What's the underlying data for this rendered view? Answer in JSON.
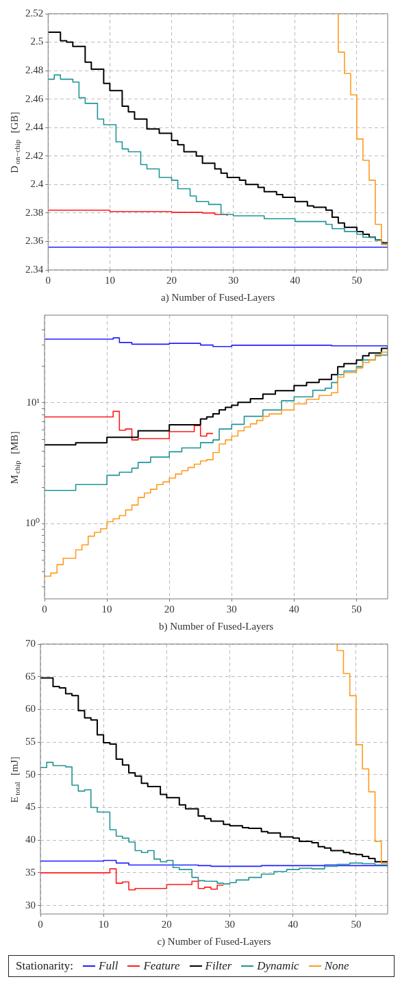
{
  "chart_data": [
    {
      "type": "step",
      "xlabel": "a) Number of Fused-Layers",
      "ylabel": "D$_{on−chip}$  [GB]",
      "xlim": [
        0,
        55
      ],
      "xticks": [
        0,
        10,
        20,
        30,
        40,
        50
      ],
      "ylim": [
        2.34,
        2.52
      ],
      "yticks": [
        2.34,
        2.36,
        2.38,
        2.4,
        2.42,
        2.44,
        2.46,
        2.48,
        2.5,
        2.52
      ],
      "grid": true,
      "series": [
        {
          "color": "#1f1fff",
          "x": [
            0,
            55
          ],
          "values": [
            2.356,
            2.356
          ]
        },
        {
          "color": "#ff1a1a",
          "x": [
            0,
            10,
            20,
            25,
            27,
            29
          ],
          "values": [
            2.382,
            2.381,
            2.3805,
            2.38,
            2.379,
            2.378
          ]
        },
        {
          "color": "#000000",
          "x": [
            0,
            2,
            3,
            4,
            6,
            7,
            9,
            10,
            12,
            13,
            14,
            16,
            18,
            20,
            21,
            22,
            24,
            25,
            27,
            28,
            29,
            31,
            32,
            34,
            35,
            37,
            38,
            40,
            42,
            43,
            45,
            46,
            47,
            48,
            50,
            51,
            52,
            53,
            54,
            55
          ],
          "values": [
            2.507,
            2.501,
            2.5,
            2.497,
            2.486,
            2.481,
            2.471,
            2.466,
            2.455,
            2.451,
            2.446,
            2.439,
            2.436,
            2.431,
            2.428,
            2.423,
            2.42,
            2.415,
            2.411,
            2.408,
            2.405,
            2.403,
            2.4,
            2.398,
            2.395,
            2.393,
            2.391,
            2.388,
            2.385,
            2.384,
            2.382,
            2.377,
            2.373,
            2.37,
            2.367,
            2.365,
            2.363,
            2.361,
            2.359,
            2.359
          ]
        },
        {
          "color": "#1f9595",
          "x": [
            0,
            1,
            2,
            4,
            5,
            6,
            8,
            9,
            11,
            12,
            13,
            15,
            16,
            18,
            20,
            21,
            23,
            24,
            26,
            28,
            30,
            35,
            40,
            45,
            46,
            48,
            50,
            51,
            53,
            54,
            55
          ],
          "values": [
            2.474,
            2.477,
            2.474,
            2.472,
            2.461,
            2.457,
            2.446,
            2.442,
            2.43,
            2.425,
            2.423,
            2.414,
            2.411,
            2.405,
            2.403,
            2.397,
            2.392,
            2.388,
            2.386,
            2.379,
            2.378,
            2.376,
            2.374,
            2.372,
            2.369,
            2.367,
            2.365,
            2.363,
            2.361,
            2.358,
            2.358
          ]
        },
        {
          "color": "#ff9a1f",
          "x": [
            47,
            47,
            48,
            49,
            50,
            51,
            52,
            53,
            54,
            55
          ],
          "values": [
            2.52,
            2.493,
            2.478,
            2.463,
            2.432,
            2.417,
            2.403,
            2.372,
            2.358,
            2.358
          ]
        }
      ]
    },
    {
      "type": "step",
      "xlabel": "b) Number of Fused-Layers",
      "ylabel": "M$_{chip}$  [MB]",
      "xlim": [
        0,
        55
      ],
      "xticks": [
        0,
        10,
        20,
        30,
        40,
        50
      ],
      "ylim": [
        0.24,
        53
      ],
      "log": true,
      "yticks": [
        {
          "value": 0.3,
          "label": null
        },
        {
          "value": 0.4,
          "label": null
        },
        {
          "value": 0.5,
          "label": null
        },
        {
          "value": 0.6,
          "label": null
        },
        {
          "value": 0.7,
          "label": null
        },
        {
          "value": 0.8,
          "label": null
        },
        {
          "value": 0.9,
          "label": null
        },
        {
          "value": 1,
          "label": "10⁰"
        },
        {
          "value": 2,
          "label": null
        },
        {
          "value": 3,
          "label": null
        },
        {
          "value": 4,
          "label": null
        },
        {
          "value": 5,
          "label": null
        },
        {
          "value": 6,
          "label": null
        },
        {
          "value": 7,
          "label": null
        },
        {
          "value": 8,
          "label": null
        },
        {
          "value": 9,
          "label": null
        },
        {
          "value": 10,
          "label": "10¹"
        },
        {
          "value": 20,
          "label": null
        },
        {
          "value": 30,
          "label": null
        },
        {
          "value": 40,
          "label": null
        }
      ],
      "grid": true,
      "series": [
        {
          "color": "#1f1fff",
          "x": [
            0,
            11,
            12,
            14,
            20,
            25,
            27,
            30,
            45,
            46,
            55
          ],
          "values": [
            33.6,
            34.4,
            31.5,
            30.5,
            31,
            30,
            29.2,
            29.9,
            29.9,
            29.6,
            29.3
          ]
        },
        {
          "color": "#ff1a1a",
          "x": [
            0,
            11,
            12,
            13,
            14,
            15,
            20,
            24,
            25,
            26,
            27
          ],
          "values": [
            7.64,
            8.5,
            5.93,
            6.08,
            4.93,
            5.05,
            5.78,
            6.48,
            5.31,
            5.58,
            5.58
          ]
        },
        {
          "color": "#000000",
          "x": [
            0,
            5,
            10,
            15,
            20,
            25,
            26,
            27,
            28,
            29,
            30,
            31,
            33,
            35,
            37,
            40,
            42,
            44,
            46,
            47,
            48,
            50,
            51,
            52,
            54,
            55
          ],
          "values": [
            4.5,
            4.68,
            5.18,
            5.87,
            6.58,
            7.36,
            7.65,
            8.1,
            8.73,
            9.17,
            9.55,
            10.1,
            10.8,
            11.8,
            12.6,
            13.9,
            14.7,
            15.6,
            17.1,
            19.9,
            21.1,
            22.6,
            24.5,
            25.8,
            28.2,
            29.3
          ]
        },
        {
          "color": "#1f9595",
          "x": [
            0,
            5,
            10,
            12,
            14,
            15,
            17,
            20,
            22,
            25,
            27,
            28,
            30,
            32,
            35,
            38,
            40,
            43,
            45,
            46,
            47,
            48,
            50,
            51,
            53,
            55
          ],
          "values": [
            1.89,
            2.11,
            2.52,
            2.67,
            2.88,
            3.22,
            3.56,
            3.94,
            4.24,
            4.68,
            4.93,
            6.08,
            6.64,
            7.73,
            8.73,
            10.4,
            11.2,
            12.7,
            13.2,
            14.7,
            17.1,
            18.3,
            19.9,
            22.6,
            24.8,
            27.5
          ]
        },
        {
          "color": "#ff9a1f",
          "x": [
            0,
            1,
            2,
            3,
            5,
            6,
            7,
            8,
            9,
            10,
            11,
            12,
            13,
            14,
            15,
            16,
            17,
            18,
            19,
            20,
            21,
            22,
            23,
            24,
            25,
            26,
            27,
            28,
            29,
            30,
            31,
            32,
            33,
            34,
            35,
            36,
            38,
            40,
            42,
            44,
            46,
            47,
            48,
            50,
            51,
            52,
            53,
            54,
            55
          ],
          "values": [
            0.369,
            0.392,
            0.46,
            0.52,
            0.61,
            0.67,
            0.79,
            0.85,
            0.91,
            1.04,
            1.1,
            1.17,
            1.3,
            1.43,
            1.65,
            1.8,
            1.93,
            2.11,
            2.22,
            2.39,
            2.58,
            2.75,
            2.92,
            3.11,
            3.31,
            3.39,
            3.88,
            4.57,
            4.93,
            5.31,
            5.87,
            6.31,
            6.7,
            7.15,
            7.73,
            8.1,
            8.73,
            9.8,
            10.7,
            11.5,
            12.1,
            16.3,
            17.8,
            19.4,
            21.5,
            22.6,
            24.3,
            26.2,
            27.2
          ]
        }
      ]
    },
    {
      "type": "step",
      "xlabel": "c) Number of Fused-Layers",
      "ylabel": "E$_{total}$  [mJ]",
      "xlim": [
        0,
        55
      ],
      "xticks": [
        0,
        10,
        20,
        30,
        40,
        50
      ],
      "ylim": [
        28.7,
        70
      ],
      "yticks": [
        30,
        35,
        40,
        45,
        50,
        55,
        60,
        65,
        70
      ],
      "grid": true,
      "legend": "bottom",
      "legend_title": "Stationarity:",
      "series": [
        {
          "name": "Full",
          "color": "#1f1fff",
          "x": [
            0,
            10,
            12,
            14,
            25,
            27,
            35,
            45,
            47,
            55
          ],
          "values": [
            36.8,
            36.9,
            36.5,
            36.2,
            36.1,
            36.0,
            36.1,
            36.2,
            36.1,
            35.9
          ]
        },
        {
          "name": "Feature",
          "color": "#ff1a1a",
          "x": [
            0,
            11,
            12,
            13,
            14,
            15,
            20,
            24,
            25,
            26,
            27,
            28,
            29
          ],
          "values": [
            35.0,
            35.6,
            33.4,
            33.6,
            32.4,
            32.6,
            33.2,
            33.7,
            32.6,
            32.8,
            32.5,
            33.1,
            33.1
          ]
        },
        {
          "name": "Filter",
          "color": "#000000",
          "x": [
            0,
            2,
            3,
            4,
            5,
            6,
            7,
            8,
            9,
            10,
            11,
            12,
            13,
            14,
            15,
            16,
            17,
            19,
            20,
            22,
            23,
            25,
            26,
            27,
            29,
            30,
            32,
            33,
            35,
            36,
            38,
            40,
            41,
            43,
            44,
            45,
            46,
            48,
            49,
            50,
            51,
            52,
            53,
            55
          ],
          "values": [
            64.8,
            63.5,
            63.3,
            62.4,
            62.1,
            59.8,
            58.7,
            58.4,
            56.1,
            54.9,
            54.7,
            52.4,
            51.5,
            50.3,
            49.8,
            48.7,
            48.2,
            47.0,
            46.5,
            45.4,
            44.8,
            43.7,
            43.3,
            42.9,
            42.4,
            42.2,
            41.9,
            41.8,
            41.3,
            41.1,
            40.5,
            40.3,
            39.8,
            39.6,
            39.0,
            38.8,
            38.4,
            38.1,
            37.9,
            37.8,
            37.5,
            37.2,
            36.7,
            36.6
          ]
        },
        {
          "name": "Dynamic",
          "color": "#1f9595",
          "x": [
            0,
            1,
            2,
            4,
            5,
            6,
            7,
            8,
            9,
            11,
            12,
            13,
            14,
            15,
            16,
            17,
            18,
            19,
            20,
            21,
            22,
            24,
            25,
            26,
            28,
            29,
            30,
            31,
            33,
            35,
            37,
            39,
            41,
            43,
            45,
            47,
            49,
            51,
            53,
            55
          ],
          "values": [
            51.1,
            51.9,
            51.4,
            51.2,
            48.4,
            47.5,
            47.7,
            45.0,
            44.3,
            41.6,
            40.6,
            40.3,
            39.7,
            38.4,
            38.1,
            38.4,
            37.1,
            36.7,
            36.9,
            35.8,
            35.5,
            34.3,
            33.8,
            33.7,
            33.4,
            33.3,
            33.5,
            33.9,
            34.3,
            34.8,
            35.2,
            35.5,
            35.7,
            35.6,
            36.0,
            36.3,
            36.5,
            36.4,
            36.2,
            36.1
          ]
        },
        {
          "name": "None",
          "color": "#ff9a1f",
          "x": [
            47,
            47,
            48,
            49,
            50,
            51,
            52,
            53,
            54,
            55
          ],
          "values": [
            70,
            69.0,
            65.5,
            62.1,
            54.6,
            50.9,
            47.4,
            39.8,
            36.4,
            36.3
          ]
        }
      ]
    }
  ]
}
